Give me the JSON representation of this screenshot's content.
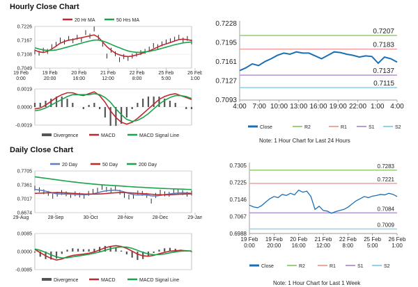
{
  "titles": {
    "hourly": "Hourly Close Chart",
    "daily": "Daily Close Chart"
  },
  "notes": {
    "hourly": "Note: 1 Hour Chart for Last 24 Hours",
    "daily": "Note: 1 Hour Chart for Last 1 Week"
  },
  "colors": {
    "close": "#1a6fb5",
    "r2": "#9bd07a",
    "r1": "#f2a5a5",
    "s1": "#b79bd3",
    "s2": "#8fd4ea",
    "ma_red": "#c0272d",
    "ma_green": "#1aa34a",
    "ma_blue": "#5b7fc7",
    "divergence": "#555555",
    "price": "#111111"
  },
  "chart_data": [
    {
      "id": "hourly-price",
      "type": "line",
      "legend": [
        "20 Hr MA",
        "50 Hrs MA"
      ],
      "yticks": [
        "0.7226",
        "0.7167",
        "0.7108",
        "0.7049"
      ],
      "ylim": [
        0.7049,
        0.7226
      ],
      "xticks": [
        [
          "19 Feb",
          "0:00"
        ],
        [
          "19 Feb",
          "20:00"
        ],
        [
          "20 Feb",
          "16:00"
        ],
        [
          "21 Feb",
          "12:00"
        ],
        [
          "22 Feb",
          "8:00"
        ],
        [
          "25 Feb",
          "5:00"
        ],
        [
          "26 Feb",
          "1:00"
        ]
      ],
      "series": [
        {
          "name": "Close",
          "values": [
            0.7118,
            0.7112,
            0.7125,
            0.712,
            0.714,
            0.715,
            0.7168,
            0.716,
            0.7175,
            0.7165,
            0.718,
            0.717,
            0.72,
            0.7185,
            0.7215,
            0.718,
            0.715,
            0.71,
            0.7125,
            0.711,
            0.7085,
            0.7098,
            0.709,
            0.71,
            0.7108,
            0.7115,
            0.712,
            0.713,
            0.7145,
            0.714,
            0.7152,
            0.716,
            0.7165,
            0.7172,
            0.718,
            0.7168,
            0.7175,
            0.716
          ]
        },
        {
          "name": "20 Hr MA",
          "values": [
            0.7125,
            0.7118,
            0.7115,
            0.712,
            0.713,
            0.7142,
            0.7155,
            0.7162,
            0.7168,
            0.717,
            0.7175,
            0.7178,
            0.7182,
            0.7186,
            0.719,
            0.718,
            0.716,
            0.714,
            0.7125,
            0.7112,
            0.7105,
            0.71,
            0.7098,
            0.71,
            0.7105,
            0.711,
            0.7116,
            0.7122,
            0.713,
            0.7138,
            0.7146,
            0.7152,
            0.7158,
            0.7164,
            0.717,
            0.7172,
            0.717,
            0.7166
          ]
        },
        {
          "name": "50 Hrs MA",
          "values": [
            0.7135,
            0.713,
            0.7126,
            0.7124,
            0.7124,
            0.7126,
            0.713,
            0.7135,
            0.714,
            0.7145,
            0.715,
            0.7155,
            0.716,
            0.7164,
            0.7168,
            0.7168,
            0.7164,
            0.7158,
            0.715,
            0.7142,
            0.7135,
            0.7128,
            0.7122,
            0.7118,
            0.7116,
            0.7116,
            0.7118,
            0.712,
            0.7124,
            0.7128,
            0.7133,
            0.7138,
            0.7143,
            0.7148,
            0.7152,
            0.7156,
            0.7158,
            0.716
          ]
        }
      ]
    },
    {
      "id": "hourly-macd",
      "type": "bar",
      "legend": [
        "Divergence",
        "MACD",
        "MACD Signal Line"
      ],
      "yticks": [
        "0.0019",
        "0.0000",
        "-0.0019"
      ],
      "ylim": [
        -0.0019,
        0.0019
      ],
      "series": [
        {
          "name": "MACD",
          "values": [
            -0.0002,
            -0.0001,
            0.0002,
            0.0006,
            0.001,
            0.0013,
            0.0015,
            0.0015,
            0.0013,
            0.0012,
            0.0014,
            0.0016,
            0.0012,
            0.0005,
            -0.0004,
            -0.0011,
            -0.0016,
            -0.0018,
            -0.0016,
            -0.0012,
            -0.0007,
            -0.0002,
            0.0003,
            0.0008,
            0.0011,
            0.0013,
            0.0014,
            0.0012,
            0.001,
            0.0008
          ]
        },
        {
          "name": "MACD Signal Line",
          "values": [
            -0.0004,
            -0.0003,
            -0.0001,
            0.0002,
            0.0005,
            0.0008,
            0.0011,
            0.0013,
            0.0013,
            0.0013,
            0.0013,
            0.0014,
            0.0013,
            0.001,
            0.0005,
            -0.0002,
            -0.0008,
            -0.0013,
            -0.0015,
            -0.0014,
            -0.0011,
            -0.0007,
            -0.0002,
            0.0003,
            0.0007,
            0.001,
            0.0012,
            0.0012,
            0.0011,
            0.0009
          ]
        }
      ]
    },
    {
      "id": "hourly-line",
      "type": "line",
      "yticks": [
        "0.7228",
        "0.7195",
        "0.7161",
        "0.7127",
        "0.7093"
      ],
      "ylim": [
        0.7093,
        0.7228
      ],
      "xticks": [
        "4:00",
        "7:00",
        "10:00",
        "13:00",
        "16:00",
        "19:00",
        "22:00",
        "1:00",
        "4:00"
      ],
      "levels": [
        {
          "name": "R2",
          "value": 0.7207,
          "label": "0.7207"
        },
        {
          "name": "R1",
          "value": 0.7183,
          "label": "0.7183"
        },
        {
          "name": "S1",
          "value": 0.7137,
          "label": "0.7137"
        },
        {
          "name": "S2",
          "value": 0.7115,
          "label": "0.7115"
        }
      ],
      "legend": [
        "Close",
        "R2",
        "R1",
        "S1",
        "S2"
      ],
      "series": [
        {
          "name": "Close",
          "values": [
            0.7145,
            0.715,
            0.7157,
            0.7154,
            0.7161,
            0.7166,
            0.7172,
            0.7176,
            0.7174,
            0.7178,
            0.7176,
            0.7176,
            0.7171,
            0.7166,
            0.7172,
            0.7178,
            0.7177,
            0.7174,
            0.7172,
            0.7169,
            0.7171,
            0.717,
            0.7158,
            0.7169,
            0.7166,
            0.716
          ]
        }
      ]
    },
    {
      "id": "daily-price",
      "type": "line",
      "legend": [
        "20 Day",
        "50 Day",
        "200 Day"
      ],
      "yticks": [
        "0.7705",
        "0.7361",
        "0.7017",
        "0.6674"
      ],
      "ylim": [
        0.6674,
        0.7705
      ],
      "xticks": [
        "29-Aug",
        "28-Sep",
        "30-Oct",
        "28-Nov",
        "28-Dec",
        "29-Jan"
      ],
      "series": [
        {
          "name": "Close",
          "values": [
            0.728,
            0.724,
            0.719,
            0.715,
            0.708,
            0.713,
            0.717,
            0.714,
            0.71,
            0.714,
            0.711,
            0.708,
            0.715,
            0.72,
            0.723,
            0.73,
            0.725,
            0.723,
            0.727,
            0.718,
            0.71,
            0.706,
            0.708,
            0.716,
            0.715,
            0.71,
            0.696,
            0.71,
            0.718,
            0.714,
            0.713,
            0.72,
            0.719,
            0.717,
            0.713,
            0.716
          ]
        },
        {
          "name": "20 Day",
          "values": [
            0.725,
            0.7235,
            0.7215,
            0.719,
            0.716,
            0.714,
            0.7135,
            0.7135,
            0.713,
            0.7125,
            0.712,
            0.7118,
            0.7125,
            0.714,
            0.7165,
            0.7195,
            0.7215,
            0.7225,
            0.723,
            0.7215,
            0.7185,
            0.715,
            0.712,
            0.711,
            0.7115,
            0.711,
            0.709,
            0.7085,
            0.71,
            0.712,
            0.7135,
            0.715,
            0.716,
            0.7165,
            0.716,
            0.7155
          ]
        },
        {
          "name": "50 Day",
          "values": [
            0.715,
            0.7155,
            0.716,
            0.7165,
            0.7168,
            0.717,
            0.7168,
            0.7162,
            0.7155,
            0.7148,
            0.714,
            0.7135,
            0.7132,
            0.7132,
            0.7135,
            0.714,
            0.7148,
            0.7158,
            0.7165,
            0.717,
            0.717,
            0.7165,
            0.7158,
            0.715,
            0.7145,
            0.714,
            0.713,
            0.712,
            0.7115,
            0.7115,
            0.7118,
            0.7122,
            0.7128,
            0.7133,
            0.7136,
            0.7138
          ]
        },
        {
          "name": "200 Day",
          "values": [
            0.756,
            0.7545,
            0.753,
            0.7515,
            0.75,
            0.7485,
            0.747,
            0.7455,
            0.744,
            0.7428,
            0.7415,
            0.7403,
            0.7392,
            0.7382,
            0.7372,
            0.7363,
            0.7355,
            0.7347,
            0.734,
            0.7333,
            0.7326,
            0.7319,
            0.7312,
            0.7305,
            0.7299,
            0.7293,
            0.7287,
            0.7281,
            0.7276,
            0.7271,
            0.7266,
            0.7262,
            0.7258,
            0.7254,
            0.725,
            0.7246
          ]
        }
      ]
    },
    {
      "id": "daily-macd",
      "type": "bar",
      "legend": [
        "Divergence",
        "MACD",
        "MACD Signal Line"
      ],
      "yticks": [
        "0.0085",
        "0.0000",
        "-0.0085"
      ],
      "ylim": [
        -0.0085,
        0.0085
      ],
      "series": [
        {
          "name": "MACD",
          "values": [
            0.001,
            -0.0005,
            -0.002,
            -0.0032,
            -0.004,
            -0.0035,
            -0.0025,
            -0.0018,
            -0.0015,
            -0.0012,
            -0.0008,
            -0.0002,
            0.0008,
            0.0018,
            0.0024,
            0.0028,
            0.0024,
            0.0015,
            0.0002,
            -0.0012,
            -0.002,
            -0.0022,
            -0.0018,
            -0.001,
            -0.0004,
            0.0002,
            0.0004,
            0.0006,
            0.0004,
            0.0002
          ]
        },
        {
          "name": "MACD Signal Line",
          "values": [
            0.0012,
            0.0006,
            -0.0004,
            -0.0015,
            -0.0025,
            -0.003,
            -0.0029,
            -0.0025,
            -0.0021,
            -0.0017,
            -0.0013,
            -0.0008,
            -0.0002,
            0.0006,
            0.0013,
            0.0019,
            0.0022,
            0.0021,
            0.0015,
            0.0006,
            -0.0004,
            -0.0011,
            -0.0015,
            -0.0014,
            -0.0011,
            -0.0006,
            -0.0002,
            0.0002,
            0.0003,
            0.0003
          ]
        }
      ]
    },
    {
      "id": "daily-line",
      "type": "line",
      "yticks": [
        "0.7305",
        "0.7225",
        "0.7146",
        "0.7067",
        "0.6988"
      ],
      "ylim": [
        0.6988,
        0.7305
      ],
      "xticks": [
        [
          "19 Feb",
          "0:00"
        ],
        [
          "19 Feb",
          "20:00"
        ],
        [
          "20 Feb",
          "16:00"
        ],
        [
          "21 Feb",
          "12:00"
        ],
        [
          "22 Feb",
          "8:00"
        ],
        [
          "25 Feb",
          "5:00"
        ],
        [
          "26 Feb",
          "1:00"
        ]
      ],
      "levels": [
        {
          "name": "R2",
          "value": 0.7283,
          "label": "0.7283"
        },
        {
          "name": "R1",
          "value": 0.7221,
          "label": "0.7221"
        },
        {
          "name": "S1",
          "value": 0.7084,
          "label": "0.7084"
        },
        {
          "name": "S2",
          "value": 0.7009,
          "label": "0.7009"
        }
      ],
      "legend": [
        "Close",
        "R2",
        "R1",
        "S1",
        "S2"
      ],
      "series": [
        {
          "name": "Close",
          "values": [
            0.712,
            0.7112,
            0.7108,
            0.7118,
            0.7135,
            0.715,
            0.716,
            0.7155,
            0.717,
            0.7165,
            0.7175,
            0.7168,
            0.719,
            0.718,
            0.7185,
            0.716,
            0.71,
            0.7115,
            0.7095,
            0.7092,
            0.7082,
            0.709,
            0.7095,
            0.71,
            0.711,
            0.7125,
            0.714,
            0.715,
            0.716,
            0.7155,
            0.7162,
            0.7165,
            0.717,
            0.7168,
            0.7175,
            0.717,
            0.716
          ]
        }
      ]
    }
  ]
}
